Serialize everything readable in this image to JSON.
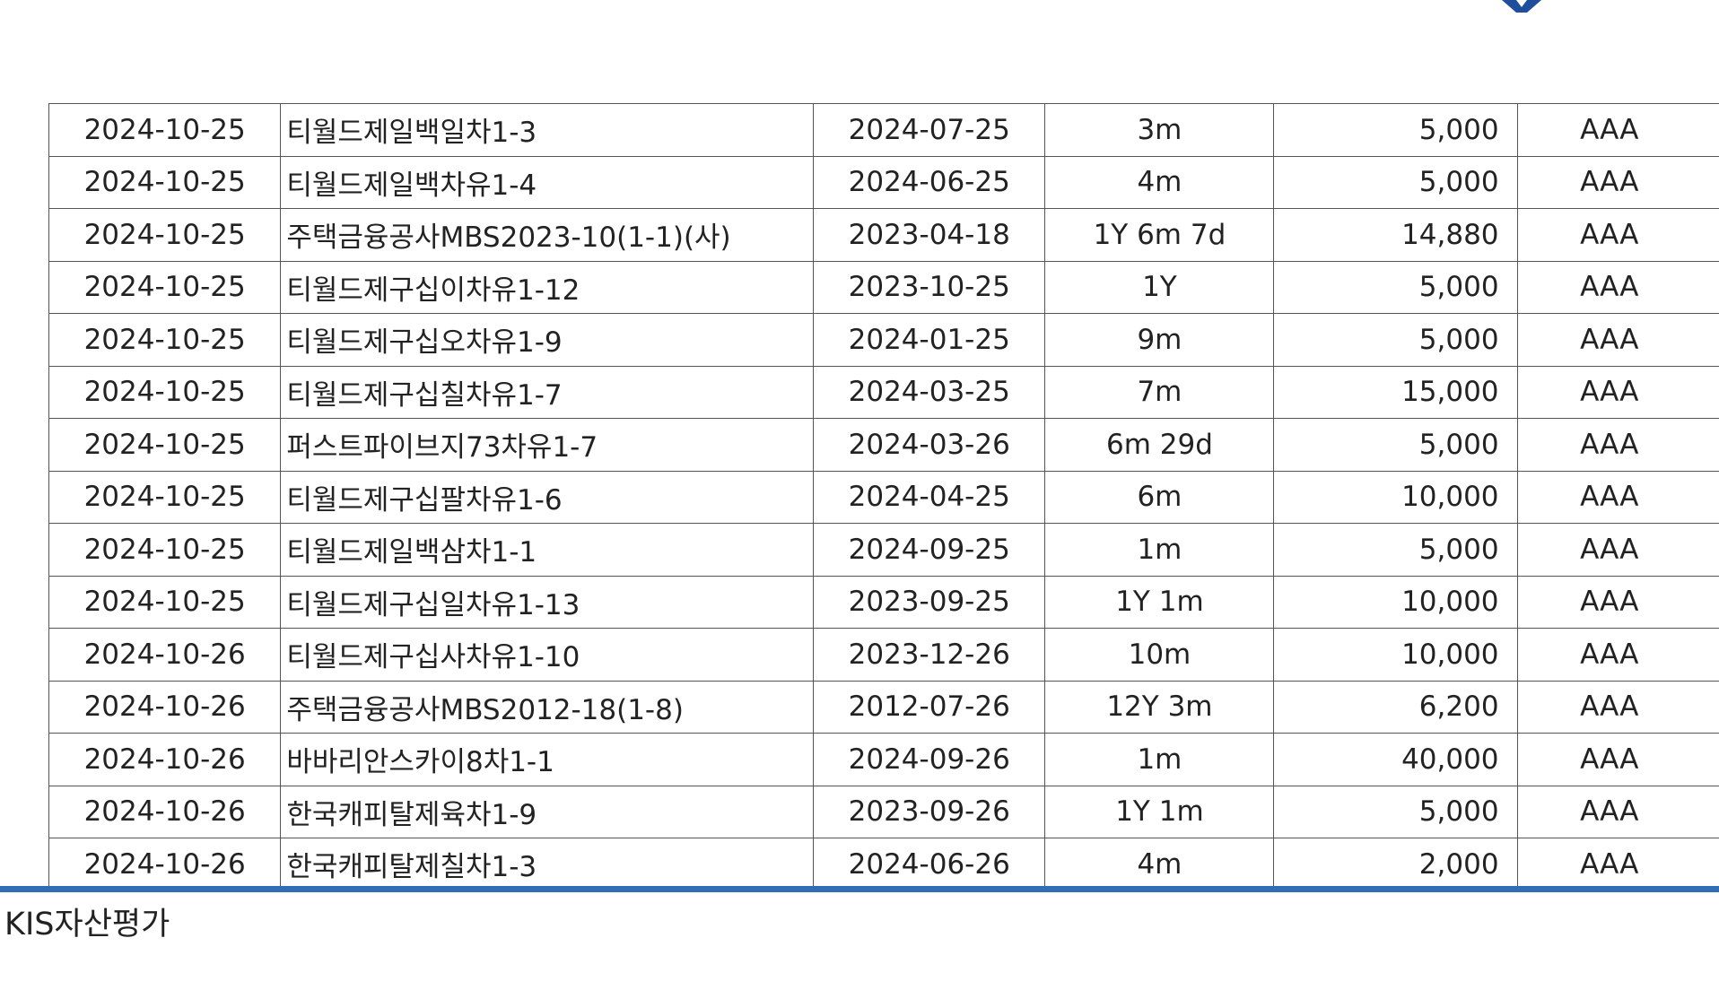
{
  "brand_color": "#2f6db5",
  "logo": {
    "icon": "company-logo-icon",
    "color": "#1f4e9c"
  },
  "table": {
    "rows": [
      [
        "2024-10-25",
        "티월드제일백일차1-3",
        "2024-07-25",
        "3m",
        "5,000",
        "AAA"
      ],
      [
        "2024-10-25",
        "티월드제일백차유1-4",
        "2024-06-25",
        "4m",
        "5,000",
        "AAA"
      ],
      [
        "2024-10-25",
        "주택금융공사MBS2023-10(1-1)(사)",
        "2023-04-18",
        "1Y 6m 7d",
        "14,880",
        "AAA"
      ],
      [
        "2024-10-25",
        "티월드제구십이차유1-12",
        "2023-10-25",
        "1Y",
        "5,000",
        "AAA"
      ],
      [
        "2024-10-25",
        "티월드제구십오차유1-9",
        "2024-01-25",
        "9m",
        "5,000",
        "AAA"
      ],
      [
        "2024-10-25",
        "티월드제구십칠차유1-7",
        "2024-03-25",
        "7m",
        "15,000",
        "AAA"
      ],
      [
        "2024-10-25",
        "퍼스트파이브지73차유1-7",
        "2024-03-26",
        "6m 29d",
        "5,000",
        "AAA"
      ],
      [
        "2024-10-25",
        "티월드제구십팔차유1-6",
        "2024-04-25",
        "6m",
        "10,000",
        "AAA"
      ],
      [
        "2024-10-25",
        "티월드제일백삼차1-1",
        "2024-09-25",
        "1m",
        "5,000",
        "AAA"
      ],
      [
        "2024-10-25",
        "티월드제구십일차유1-13",
        "2023-09-25",
        "1Y 1m",
        "10,000",
        "AAA"
      ],
      [
        "2024-10-26",
        "티월드제구십사차유1-10",
        "2023-12-26",
        "10m",
        "10,000",
        "AAA"
      ],
      [
        "2024-10-26",
        "주택금융공사MBS2012-18(1-8)",
        "2012-07-26",
        "12Y 3m",
        "6,200",
        "AAA"
      ],
      [
        "2024-10-26",
        "바바리안스카이8차1-1",
        "2024-09-26",
        "1m",
        "40,000",
        "AAA"
      ],
      [
        "2024-10-26",
        "한국캐피탈제육차1-9",
        "2023-09-26",
        "1Y 1m",
        "5,000",
        "AAA"
      ],
      [
        "2024-10-26",
        "한국캐피탈제칠차1-3",
        "2024-06-26",
        "4m",
        "2,000",
        "AAA"
      ]
    ]
  },
  "footer": {
    "company": "KIS자산평가"
  }
}
